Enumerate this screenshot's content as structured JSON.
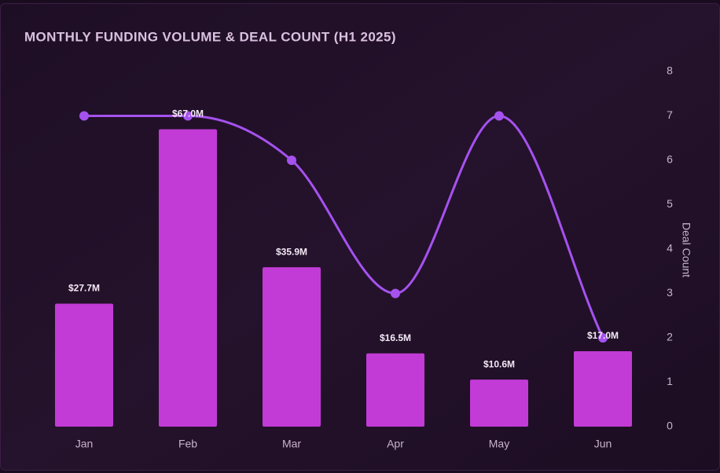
{
  "chart_data": {
    "type": "bar",
    "title": "MONTHLY FUNDING VOLUME & DEAL COUNT (H1 2025)",
    "categories": [
      "Jan",
      "Feb",
      "Mar",
      "Apr",
      "May",
      "Jun"
    ],
    "series": [
      {
        "type": "bar",
        "color": "#c23bd6",
        "values": [
          27.7,
          67.0,
          35.9,
          16.5,
          10.6,
          17.0
        ],
        "value_labels": [
          "$27.7M",
          "$67.0M",
          "$35.9M",
          "$16.5M",
          "$10.6M",
          "$17.0M"
        ]
      },
      {
        "type": "line",
        "axis": "y2",
        "color": "#a552ef",
        "values": [
          7,
          7,
          6,
          3,
          7,
          2
        ]
      }
    ],
    "ylim": [
      0,
      80
    ],
    "y2lim": [
      0,
      8
    ],
    "y2ticks": [
      0,
      1,
      2,
      3,
      4,
      5,
      6,
      7,
      8
    ],
    "y2label": "Deal Count"
  }
}
